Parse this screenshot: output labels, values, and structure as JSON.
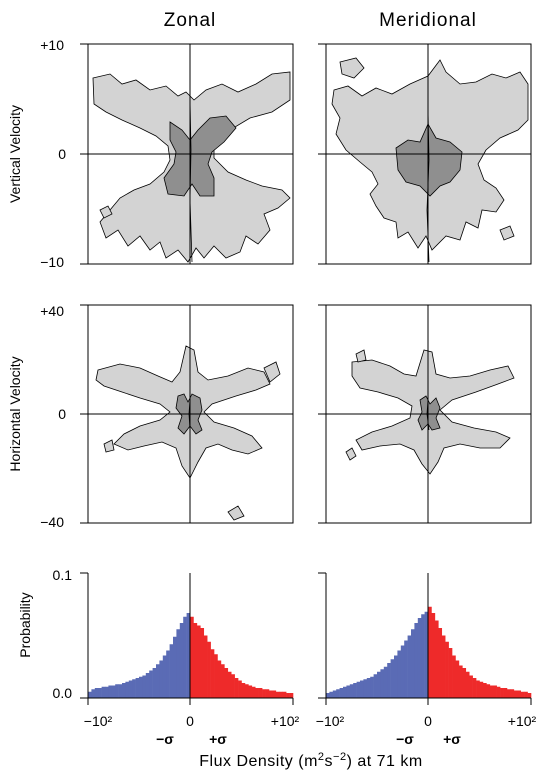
{
  "columns": [
    "Zonal",
    "Meridional"
  ],
  "rows": {
    "vertical": {
      "ylabel": "Vertical Velocity",
      "ticks": [
        "+10",
        "0",
        "−10"
      ],
      "ylim": [
        -10,
        10
      ]
    },
    "horizontal": {
      "ylabel": "Horizontal Velocity",
      "ticks": [
        "+40",
        "0",
        "−40"
      ],
      "ylim": [
        -40,
        40
      ]
    },
    "probability": {
      "ylabel": "Probability",
      "ticks": [
        "0.1",
        "0.0"
      ],
      "ylim": [
        0,
        0.1
      ]
    }
  },
  "xaxis": {
    "ticks_left": [
      "−10²",
      "0",
      "+10²"
    ],
    "ticks_right": [
      "−10²",
      "0",
      "+10²"
    ],
    "sigma_minus": "−σ",
    "sigma_plus": "+σ",
    "xlabel_pre": "Flux Density (m",
    "xlabel_sup1": "2",
    "xlabel_mid": "s",
    "xlabel_sup2": "−2",
    "xlabel_post": ") at 71 km"
  },
  "colors": {
    "negative": "#5a6bb5",
    "positive": "#ee2a2a",
    "contour_light": "#d3d3d3",
    "contour_dark": "#8f8f8f"
  },
  "chart_data": [
    {
      "type": "heatmap",
      "panel": "Zonal / Vertical Velocity",
      "ylabel": "Vertical Velocity",
      "ylim": [
        -10,
        10
      ],
      "xlim": [
        -100,
        100
      ],
      "note": "joint-distribution contours (light and dark shaded levels)"
    },
    {
      "type": "heatmap",
      "panel": "Meridional / Vertical Velocity",
      "ylabel": "Vertical Velocity",
      "ylim": [
        -10,
        10
      ],
      "xlim": [
        -100,
        100
      ],
      "note": "joint-distribution contours (light and dark shaded levels)"
    },
    {
      "type": "heatmap",
      "panel": "Zonal / Horizontal Velocity",
      "ylabel": "Horizontal Velocity",
      "ylim": [
        -40,
        40
      ],
      "xlim": [
        -100,
        100
      ],
      "note": "joint-distribution contours (light and dark shaded levels)"
    },
    {
      "type": "heatmap",
      "panel": "Meridional / Horizontal Velocity",
      "ylabel": "Horizontal Velocity",
      "ylim": [
        -40,
        40
      ],
      "xlim": [
        -100,
        100
      ],
      "note": "joint-distribution contours (light and dark shaded levels)"
    },
    {
      "type": "bar",
      "panel": "Zonal / Probability",
      "ylabel": "Probability",
      "ylim": [
        0,
        0.1
      ],
      "xlim": [
        -100,
        100
      ],
      "neg": [
        0.005,
        0.007,
        0.008,
        0.008,
        0.009,
        0.009,
        0.01,
        0.01,
        0.011,
        0.011,
        0.012,
        0.013,
        0.014,
        0.015,
        0.016,
        0.017,
        0.018,
        0.02,
        0.022,
        0.024,
        0.027,
        0.03,
        0.034,
        0.038,
        0.043,
        0.049,
        0.055,
        0.06,
        0.065,
        0.068
      ],
      "pos": [
        0.065,
        0.06,
        0.058,
        0.056,
        0.05,
        0.045,
        0.039,
        0.035,
        0.03,
        0.027,
        0.024,
        0.021,
        0.019,
        0.016,
        0.014,
        0.012,
        0.011,
        0.01,
        0.009,
        0.008,
        0.008,
        0.007,
        0.007,
        0.006,
        0.006,
        0.005,
        0.005,
        0.005,
        0.004,
        0.004
      ]
    },
    {
      "type": "bar",
      "panel": "Meridional / Probability",
      "ylabel": "Probability",
      "ylim": [
        0,
        0.1
      ],
      "xlim": [
        -100,
        100
      ],
      "neg": [
        0.004,
        0.005,
        0.006,
        0.007,
        0.008,
        0.009,
        0.01,
        0.011,
        0.012,
        0.013,
        0.014,
        0.015,
        0.016,
        0.017,
        0.019,
        0.021,
        0.023,
        0.025,
        0.028,
        0.031,
        0.034,
        0.038,
        0.042,
        0.046,
        0.05,
        0.055,
        0.06,
        0.064,
        0.067,
        0.069
      ],
      "pos": [
        0.073,
        0.068,
        0.062,
        0.056,
        0.05,
        0.045,
        0.04,
        0.034,
        0.03,
        0.026,
        0.024,
        0.021,
        0.018,
        0.016,
        0.014,
        0.013,
        0.012,
        0.011,
        0.01,
        0.01,
        0.009,
        0.008,
        0.008,
        0.007,
        0.007,
        0.006,
        0.006,
        0.005,
        0.005,
        0.004
      ]
    }
  ]
}
